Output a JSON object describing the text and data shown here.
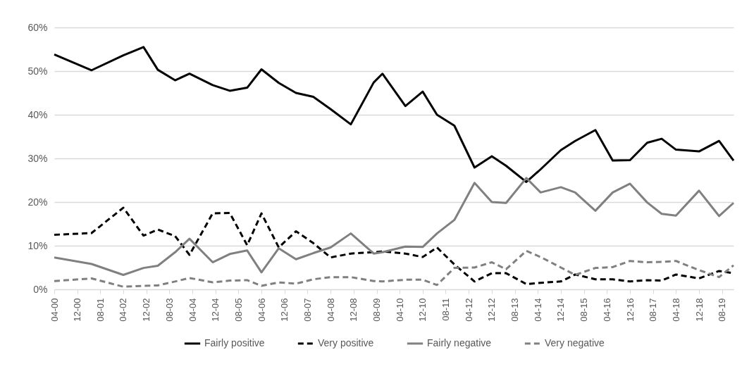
{
  "chart_data": {
    "type": "line",
    "x": [
      "2000-04",
      "2001-05",
      "2002-04",
      "2002-11",
      "2003-04",
      "2003-10",
      "2004-03",
      "2004-11",
      "2005-05",
      "2005-11",
      "2006-04",
      "2006-10",
      "2007-04",
      "2007-10",
      "2008-04",
      "2008-11",
      "2009-07",
      "2009-10",
      "2010-06",
      "2010-12",
      "2011-05",
      "2011-11",
      "2012-06",
      "2012-12",
      "2013-05",
      "2013-12",
      "2014-05",
      "2014-12",
      "2015-05",
      "2015-12",
      "2016-06",
      "2016-12",
      "2017-06",
      "2017-11",
      "2018-04",
      "2018-12",
      "2019-07",
      "2019-12"
    ],
    "series": [
      {
        "name": "Fairly positive",
        "color": "#000000",
        "line_style": "solid",
        "values": [
          53.8,
          50.2,
          53.6,
          55.5,
          50.3,
          47.9,
          49.4,
          46.8,
          45.5,
          46.2,
          50.4,
          47.3,
          45.0,
          44.1,
          41.3,
          37.8,
          47.4,
          49.4,
          42.0,
          45.3,
          40.0,
          37.5,
          27.9,
          30.5,
          28.3,
          24.6,
          27.5,
          31.9,
          34.0,
          36.5,
          29.5,
          29.6,
          33.6,
          34.5,
          32.0,
          31.6,
          34.0,
          29.5
        ]
      },
      {
        "name": "Very positive",
        "color": "#000000",
        "line_style": "dashed",
        "values": [
          12.5,
          12.9,
          18.7,
          12.3,
          13.7,
          12.2,
          7.9,
          17.4,
          17.5,
          10.1,
          17.4,
          9.6,
          13.3,
          10.6,
          7.3,
          8.2,
          8.5,
          8.7,
          8.2,
          7.4,
          9.6,
          5.7,
          1.8,
          3.7,
          3.7,
          1.2,
          1.5,
          1.8,
          3.4,
          2.3,
          2.3,
          1.8,
          2.1,
          2.0,
          3.4,
          2.5,
          4.2,
          3.7
        ]
      },
      {
        "name": "Fairly negative",
        "color": "#808080",
        "line_style": "solid",
        "values": [
          7.3,
          5.8,
          3.3,
          4.9,
          5.4,
          8.5,
          11.6,
          6.2,
          8.1,
          8.9,
          3.9,
          9.4,
          6.9,
          8.3,
          9.6,
          12.8,
          8.2,
          8.5,
          9.8,
          9.7,
          12.8,
          15.9,
          24.4,
          20.0,
          19.8,
          25.5,
          22.2,
          23.4,
          22.2,
          18.0,
          22.2,
          24.2,
          19.9,
          17.3,
          16.9,
          22.6,
          16.8,
          19.8
        ]
      },
      {
        "name": "Very negative",
        "color": "#808080",
        "line_style": "dashed",
        "values": [
          1.9,
          2.5,
          0.6,
          0.8,
          0.9,
          1.8,
          2.6,
          1.6,
          2.0,
          2.1,
          0.8,
          1.6,
          1.3,
          2.3,
          2.8,
          2.8,
          1.9,
          1.8,
          2.2,
          2.2,
          1.0,
          4.9,
          5.0,
          6.2,
          4.6,
          8.8,
          7.4,
          5.0,
          3.3,
          4.9,
          5.1,
          6.5,
          6.2,
          6.3,
          6.5,
          4.4,
          2.8,
          5.5
        ]
      }
    ],
    "xlim": [
      "2000-04",
      "2019-12"
    ],
    "xticks": [
      {
        "value": "2000-04",
        "label": "04-00"
      },
      {
        "value": "2000-12",
        "label": "12-00"
      },
      {
        "value": "2001-08",
        "label": "08-01"
      },
      {
        "value": "2002-04",
        "label": "04-02"
      },
      {
        "value": "2002-12",
        "label": "12-02"
      },
      {
        "value": "2003-08",
        "label": "08-03"
      },
      {
        "value": "2004-04",
        "label": "04-04"
      },
      {
        "value": "2004-12",
        "label": "12-04"
      },
      {
        "value": "2005-08",
        "label": "08-05"
      },
      {
        "value": "2006-04",
        "label": "04-06"
      },
      {
        "value": "2006-12",
        "label": "12-06"
      },
      {
        "value": "2007-08",
        "label": "08-07"
      },
      {
        "value": "2008-04",
        "label": "04-08"
      },
      {
        "value": "2008-12",
        "label": "12-08"
      },
      {
        "value": "2009-08",
        "label": "08-09"
      },
      {
        "value": "2010-04",
        "label": "04-10"
      },
      {
        "value": "2010-12",
        "label": "12-10"
      },
      {
        "value": "2011-08",
        "label": "08-11"
      },
      {
        "value": "2012-04",
        "label": "04-12"
      },
      {
        "value": "2012-12",
        "label": "12-12"
      },
      {
        "value": "2013-08",
        "label": "08-13"
      },
      {
        "value": "2014-04",
        "label": "04-14"
      },
      {
        "value": "2014-12",
        "label": "12-14"
      },
      {
        "value": "2015-08",
        "label": "08-15"
      },
      {
        "value": "2016-04",
        "label": "04-16"
      },
      {
        "value": "2016-12",
        "label": "12-16"
      },
      {
        "value": "2017-08",
        "label": "08-17"
      },
      {
        "value": "2018-04",
        "label": "04-18"
      },
      {
        "value": "2018-12",
        "label": "12-18"
      },
      {
        "value": "2019-08",
        "label": "08-19"
      }
    ],
    "ylim": [
      0,
      60
    ],
    "yticks": [
      {
        "value": 0,
        "label": "0%"
      },
      {
        "value": 10,
        "label": "10%"
      },
      {
        "value": 20,
        "label": "20%"
      },
      {
        "value": 30,
        "label": "30%"
      },
      {
        "value": 40,
        "label": "40%"
      },
      {
        "value": 50,
        "label": "50%"
      },
      {
        "value": 60,
        "label": "60%"
      }
    ],
    "grid": "y",
    "legend": "bottom"
  }
}
